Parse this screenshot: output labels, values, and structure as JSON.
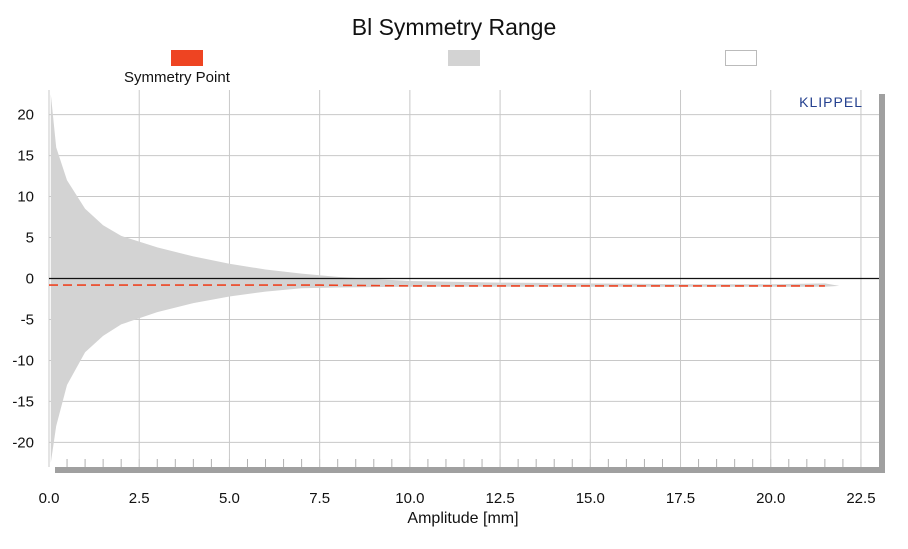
{
  "chart_data": {
    "type": "area",
    "title": "Bl Symmetry Range",
    "xlabel": "Amplitude [mm]",
    "ylabel": "",
    "xlim": [
      0,
      23
    ],
    "ylim": [
      -23,
      23
    ],
    "x_ticks": [
      0.0,
      2.5,
      5.0,
      7.5,
      10.0,
      12.5,
      15.0,
      17.5,
      20.0,
      22.5
    ],
    "x_tick_labels": [
      "0.0",
      "2.5",
      "5.0",
      "7.5",
      "10.0",
      "12.5",
      "15.0",
      "17.5",
      "20.0",
      "22.5"
    ],
    "y_ticks": [
      20,
      15,
      10,
      5,
      0,
      -5,
      -10,
      -15,
      -20
    ],
    "y_tick_labels": [
      "20",
      "15",
      "10",
      "5",
      "0",
      "-5",
      "-10",
      "-15",
      "-20"
    ],
    "grid": true,
    "legend": [
      {
        "label": "Symmetry Point",
        "color": "#ee4422"
      },
      {
        "label": "",
        "color": "#d3d3d3"
      },
      {
        "label": "",
        "color": "#ffffff"
      }
    ],
    "series": [
      {
        "name": "Symmetry Point",
        "style": "dashed",
        "color": "#ee4422",
        "x": [
          0.0,
          2.5,
          5.0,
          7.5,
          10.0,
          12.5,
          15.0,
          17.5,
          20.0,
          21.5
        ],
        "values": [
          -0.8,
          -0.8,
          -0.8,
          -0.8,
          -0.9,
          -0.9,
          -0.9,
          -0.9,
          -0.9,
          -0.9
        ]
      },
      {
        "name": "",
        "style": "band",
        "color": "#d3d3d3",
        "x": [
          0.05,
          0.2,
          0.5,
          1.0,
          1.5,
          2.0,
          3.0,
          4.0,
          5.0,
          6.0,
          7.0,
          8.0,
          10.0,
          12.5,
          15.0,
          17.5,
          20.0,
          21.5,
          21.9
        ],
        "upper": [
          22.5,
          16.0,
          12.0,
          8.5,
          6.5,
          5.2,
          3.8,
          2.7,
          1.8,
          1.1,
          0.6,
          0.2,
          -0.3,
          -0.5,
          -0.6,
          -0.7,
          -0.7,
          -0.6,
          -0.9
        ],
        "lower": [
          -22.5,
          -18.0,
          -13.0,
          -9.0,
          -7.0,
          -5.6,
          -4.1,
          -3.0,
          -2.2,
          -1.6,
          -1.2,
          -1.1,
          -1.0,
          -1.0,
          -1.0,
          -1.0,
          -1.0,
          -1.0,
          -0.9
        ]
      }
    ],
    "brand": "KLIPPEL",
    "colors": {
      "grid": "#c8c8c8",
      "frame_shadow": "#a0a0a0",
      "zero_line": "#111111",
      "brand": "#24408f"
    }
  }
}
